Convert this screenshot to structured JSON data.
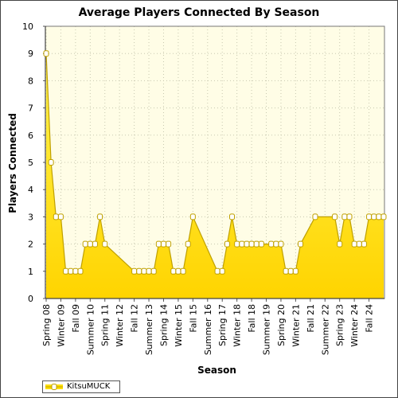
{
  "chart_data": {
    "type": "area",
    "title": "Average Players Connected By Season",
    "xlabel": "Season",
    "ylabel": "Players Connected",
    "ylim": [
      0,
      10
    ],
    "yticks": [
      0,
      1,
      2,
      3,
      4,
      5,
      6,
      7,
      8,
      9,
      10
    ],
    "grid": true,
    "legend": "bottom-left",
    "colors": {
      "fill_top": "#fff44f",
      "fill_bottom": "#ffd400",
      "line": "#bfa000",
      "marker_fill": "#ffffff",
      "plot_bg": "#fffde6"
    },
    "x_tick_labels": [
      "Spring 08",
      "Winter 09",
      "Fall 09",
      "Summer 10",
      "Spring 11",
      "Winter 12",
      "Fall 12",
      "Summer 13",
      "Spring 14",
      "Winter 15",
      "Fall 15",
      "Summer 16",
      "Spring 17",
      "Winter 18",
      "Fall 18",
      "Summer 19",
      "Spring 20",
      "Winter 21",
      "Fall 21",
      "Summer 22",
      "Spring 23",
      "Winter 24",
      "Fall 24"
    ],
    "series": [
      {
        "name": "KitsuMUCK",
        "points": [
          [
            0,
            9
          ],
          [
            1,
            5
          ],
          [
            2,
            3
          ],
          [
            3,
            3
          ],
          [
            4,
            1
          ],
          [
            5,
            1
          ],
          [
            6,
            1
          ],
          [
            7,
            1
          ],
          [
            8,
            2
          ],
          [
            9,
            2
          ],
          [
            10,
            2
          ],
          [
            11,
            3
          ],
          [
            12,
            2
          ],
          [
            18,
            1
          ],
          [
            19,
            1
          ],
          [
            20,
            1
          ],
          [
            21,
            1
          ],
          [
            22,
            1
          ],
          [
            23,
            2
          ],
          [
            24,
            2
          ],
          [
            25,
            2
          ],
          [
            26,
            1
          ],
          [
            27,
            1
          ],
          [
            28,
            1
          ],
          [
            29,
            2
          ],
          [
            30,
            3
          ],
          [
            35,
            1
          ],
          [
            36,
            1
          ],
          [
            37,
            2
          ],
          [
            38,
            3
          ],
          [
            39,
            2
          ],
          [
            40,
            2
          ],
          [
            41,
            2
          ],
          [
            42,
            2
          ],
          [
            43,
            2
          ],
          [
            44,
            2
          ],
          [
            46,
            2
          ],
          [
            47,
            2
          ],
          [
            48,
            2
          ],
          [
            49,
            1
          ],
          [
            50,
            1
          ],
          [
            51,
            1
          ],
          [
            52,
            2
          ],
          [
            55,
            3
          ],
          [
            59,
            3
          ],
          [
            60,
            2
          ],
          [
            61,
            3
          ],
          [
            62,
            3
          ],
          [
            63,
            2
          ],
          [
            64,
            2
          ],
          [
            65,
            2
          ],
          [
            66,
            3
          ],
          [
            67,
            3
          ],
          [
            68,
            3
          ],
          [
            69,
            3
          ]
        ]
      }
    ]
  }
}
